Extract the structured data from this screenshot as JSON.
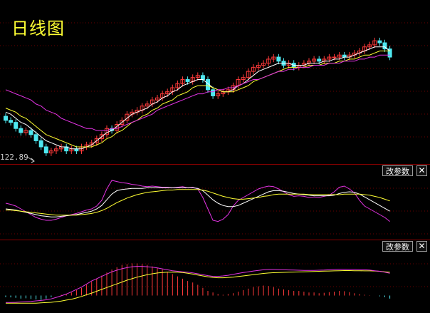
{
  "header": {
    "title": "日线图"
  },
  "price_panel": {
    "low_label": "122.89"
  },
  "panels": [
    {
      "param_label": "改参数",
      "close_label": "✕"
    },
    {
      "param_label": "改参数",
      "close_label": "✕"
    }
  ],
  "colors": {
    "background": "#000000",
    "up": "#ff3a3a",
    "down": "#4fe8f0",
    "ma_short": "#ffffff",
    "ma_mid": "#ffff33",
    "ma_long": "#e233e2",
    "divider": "#8a0000"
  },
  "icons": {
    "close": "close-icon",
    "low_marker": "arrow-icon"
  },
  "chart_data": [
    {
      "type": "candlestick",
      "title": "日线图",
      "annotations": [
        "122.89"
      ],
      "ylim": [
        120,
        185
      ],
      "x": [
        0,
        1,
        2,
        3,
        4,
        5,
        6,
        7,
        8,
        9,
        10,
        11,
        12,
        13,
        14,
        15,
        16,
        17,
        18,
        19,
        20,
        21,
        22,
        23,
        24,
        25,
        26,
        27,
        28,
        29,
        30,
        31,
        32,
        33,
        34,
        35,
        36,
        37,
        38,
        39,
        40,
        41,
        42,
        43,
        44,
        45,
        46,
        47,
        48,
        49,
        50,
        51,
        52,
        53,
        54,
        55,
        56,
        57,
        58,
        59,
        60,
        61,
        62,
        63,
        64,
        65,
        66,
        67,
        68,
        69,
        70,
        71,
        72,
        73,
        74,
        75,
        76
      ],
      "close": [
        140,
        139,
        136,
        134,
        135,
        133,
        130,
        127,
        124,
        125,
        126,
        127,
        125,
        126,
        125,
        127,
        128,
        129,
        131,
        133,
        136,
        135,
        138,
        140,
        143,
        144,
        145,
        147,
        148,
        150,
        151,
        153,
        154,
        156,
        158,
        160,
        159,
        161,
        162,
        160,
        155,
        152,
        153,
        154,
        155,
        157,
        160,
        161,
        164,
        166,
        167,
        168,
        170,
        171,
        169,
        167,
        168,
        166,
        167,
        168,
        169,
        170,
        169,
        170,
        171,
        171,
        172,
        171,
        172,
        173,
        174,
        176,
        177,
        179,
        178,
        175,
        171
      ],
      "series": [
        {
          "name": "",
          "values": [
            144,
            143,
            141,
            139,
            138,
            136,
            134,
            132,
            130,
            129,
            128,
            127,
            127,
            126,
            126,
            126,
            127,
            128,
            130,
            132,
            134,
            135,
            137,
            139,
            141,
            143,
            144,
            145,
            146,
            148,
            149,
            151,
            152,
            154,
            155,
            157,
            158,
            159,
            160,
            160,
            158,
            156,
            155,
            154,
            154,
            155,
            157,
            158,
            160,
            162,
            164,
            165,
            166,
            167,
            168,
            168,
            168,
            167,
            167,
            167,
            168,
            168,
            168,
            169,
            169,
            170,
            170,
            171,
            171,
            172,
            173,
            174,
            175,
            176,
            176,
            176,
            174
          ]
        },
        {
          "name": "",
          "values": [
            146,
            145,
            144,
            142,
            141,
            139,
            137,
            135,
            133,
            132,
            131,
            130,
            129,
            128,
            127,
            127,
            127,
            127,
            128,
            129,
            131,
            132,
            134,
            135,
            137,
            139,
            140,
            142,
            143,
            145,
            146,
            148,
            149,
            150,
            152,
            153,
            154,
            156,
            157,
            157,
            157,
            156,
            155,
            154,
            154,
            154,
            155,
            156,
            157,
            159,
            160,
            161,
            162,
            163,
            164,
            165,
            166,
            166,
            166,
            166,
            167,
            167,
            167,
            168,
            168,
            168,
            169,
            169,
            170,
            170,
            171,
            172,
            172,
            173,
            174,
            174,
            174
          ]
        },
        {
          "name": "",
          "values": [
            155,
            154,
            153,
            152,
            151,
            150,
            148,
            147,
            145,
            144,
            143,
            141,
            140,
            139,
            138,
            137,
            136,
            136,
            135,
            135,
            135,
            136,
            136,
            137,
            138,
            139,
            140,
            141,
            142,
            143,
            145,
            146,
            147,
            148,
            149,
            150,
            151,
            152,
            153,
            153,
            154,
            154,
            155,
            155,
            156,
            156,
            157,
            158,
            159,
            160,
            160,
            161,
            162,
            163,
            164,
            164,
            165,
            165,
            166,
            166,
            166,
            167,
            167,
            167,
            168,
            168,
            168,
            169,
            169,
            169,
            170,
            170,
            171,
            171,
            172,
            172,
            172
          ]
        }
      ]
    },
    {
      "type": "line",
      "ylim": [
        0,
        100
      ],
      "x": [
        0,
        1,
        2,
        3,
        4,
        5,
        6,
        7,
        8,
        9,
        10,
        11,
        12,
        13,
        14,
        15,
        16,
        17,
        18,
        19,
        20,
        21,
        22,
        23,
        24,
        25,
        26,
        27,
        28,
        29,
        30,
        31,
        32,
        33,
        34,
        35,
        36,
        37,
        38,
        39,
        40,
        41,
        42,
        43,
        44,
        45,
        46,
        47,
        48,
        49,
        50,
        51,
        52,
        53,
        54,
        55,
        56,
        57,
        58,
        59,
        60,
        61,
        62,
        63,
        64,
        65,
        66,
        67,
        68,
        69,
        70,
        71,
        72,
        73,
        74,
        75,
        76
      ],
      "series": [
        {
          "name": "",
          "values": [
            50,
            48,
            45,
            40,
            35,
            30,
            25,
            22,
            20,
            20,
            22,
            25,
            28,
            30,
            32,
            35,
            38,
            40,
            45,
            55,
            75,
            90,
            88,
            86,
            85,
            83,
            82,
            80,
            79,
            80,
            79,
            78,
            78,
            77,
            78,
            79,
            77,
            78,
            75,
            60,
            40,
            20,
            18,
            22,
            30,
            45,
            55,
            60,
            65,
            70,
            75,
            78,
            80,
            79,
            75,
            70,
            65,
            62,
            63,
            62,
            60,
            61,
            60,
            62,
            64,
            70,
            78,
            80,
            75,
            68,
            55,
            45,
            40,
            35,
            30,
            25,
            18
          ]
        },
        {
          "name": "",
          "values": [
            40,
            39,
            38,
            36,
            34,
            32,
            30,
            28,
            27,
            26,
            26,
            27,
            28,
            29,
            30,
            32,
            34,
            36,
            40,
            46,
            56,
            66,
            72,
            74,
            75,
            76,
            76,
            76,
            77,
            77,
            77,
            77,
            77,
            77,
            77,
            77,
            77,
            77,
            76,
            72,
            64,
            56,
            50,
            46,
            44,
            44,
            46,
            50,
            54,
            58,
            62,
            66,
            70,
            72,
            72,
            71,
            69,
            67,
            66,
            65,
            64,
            63,
            63,
            63,
            63,
            64,
            67,
            69,
            70,
            69,
            66,
            61,
            56,
            51,
            46,
            41,
            36
          ]
        },
        {
          "name": "",
          "values": [
            38,
            38,
            37,
            36,
            35,
            34,
            33,
            32,
            31,
            30,
            29,
            29,
            29,
            29,
            29,
            30,
            31,
            32,
            34,
            37,
            41,
            46,
            51,
            55,
            59,
            62,
            65,
            67,
            69,
            70,
            71,
            72,
            73,
            73,
            74,
            74,
            74,
            74,
            74,
            73,
            71,
            68,
            65,
            62,
            60,
            58,
            57,
            57,
            58,
            59,
            60,
            62,
            63,
            65,
            66,
            66,
            66,
            66,
            66,
            66,
            65,
            65,
            65,
            65,
            65,
            65,
            65,
            66,
            66,
            66,
            66,
            65,
            64,
            62,
            60,
            57,
            54
          ]
        }
      ]
    },
    {
      "type": "bar",
      "ylim": [
        -1,
        3
      ],
      "x": [
        0,
        1,
        2,
        3,
        4,
        5,
        6,
        7,
        8,
        9,
        10,
        11,
        12,
        13,
        14,
        15,
        16,
        17,
        18,
        19,
        20,
        21,
        22,
        23,
        24,
        25,
        26,
        27,
        28,
        29,
        30,
        31,
        32,
        33,
        34,
        35,
        36,
        37,
        38,
        39,
        40,
        41,
        42,
        43,
        44,
        45,
        46,
        47,
        48,
        49,
        50,
        51,
        52,
        53,
        54,
        55,
        56,
        57,
        58,
        59,
        60,
        61,
        62,
        63,
        64,
        65,
        66,
        67,
        68,
        69,
        70,
        71,
        72,
        73,
        74,
        75,
        76
      ],
      "values": [
        -0.1,
        -0.12,
        -0.15,
        -0.2,
        -0.18,
        -0.22,
        -0.25,
        -0.28,
        -0.2,
        -0.1,
        0,
        0.05,
        0.1,
        0.2,
        0.35,
        0.5,
        0.7,
        0.9,
        1.1,
        1.3,
        1.5,
        1.7,
        1.85,
        2.0,
        2.05,
        2.1,
        2.1,
        2.05,
        2.0,
        1.9,
        1.8,
        1.7,
        1.55,
        1.4,
        1.25,
        1.1,
        0.95,
        0.85,
        0.7,
        0.5,
        0.3,
        0.2,
        0.1,
        0.05,
        0.1,
        0.15,
        0.25,
        0.35,
        0.45,
        0.55,
        0.6,
        0.65,
        0.62,
        0.55,
        0.45,
        0.4,
        0.35,
        0.3,
        0.3,
        0.25,
        0.2,
        0.2,
        0.15,
        0.18,
        0.22,
        0.25,
        0.3,
        0.28,
        0.22,
        0.15,
        0.1,
        0.05,
        0.02,
        0,
        -0.05,
        -0.1,
        -0.2
      ],
      "series": [
        {
          "name": "",
          "values": [
            -0.5,
            -0.5,
            -0.5,
            -0.5,
            -0.5,
            -0.5,
            -0.5,
            -0.48,
            -0.46,
            -0.44,
            -0.4,
            -0.36,
            -0.3,
            -0.24,
            -0.16,
            -0.06,
            0.05,
            0.16,
            0.28,
            0.4,
            0.52,
            0.64,
            0.76,
            0.88,
            1.0,
            1.1,
            1.2,
            1.28,
            1.36,
            1.42,
            1.47,
            1.5,
            1.52,
            1.53,
            1.52,
            1.5,
            1.45,
            1.4,
            1.34,
            1.28,
            1.22,
            1.18,
            1.16,
            1.16,
            1.18,
            1.2,
            1.24,
            1.28,
            1.32,
            1.36,
            1.4,
            1.44,
            1.47,
            1.49,
            1.5,
            1.51,
            1.52,
            1.53,
            1.54,
            1.55,
            1.56,
            1.57,
            1.58,
            1.59,
            1.6,
            1.61,
            1.62,
            1.63,
            1.63,
            1.62,
            1.62,
            1.61,
            1.61,
            1.6,
            1.58,
            1.55,
            1.52
          ]
        },
        {
          "name": "",
          "values": [
            -0.45,
            -0.45,
            -0.44,
            -0.42,
            -0.4,
            -0.38,
            -0.35,
            -0.32,
            -0.28,
            -0.22,
            -0.12,
            -0.02,
            0.1,
            0.24,
            0.4,
            0.55,
            0.75,
            0.95,
            1.1,
            1.25,
            1.4,
            1.55,
            1.65,
            1.75,
            1.82,
            1.88,
            1.9,
            1.9,
            1.88,
            1.85,
            1.8,
            1.74,
            1.68,
            1.62,
            1.58,
            1.55,
            1.52,
            1.48,
            1.42,
            1.36,
            1.3,
            1.25,
            1.25,
            1.28,
            1.32,
            1.38,
            1.44,
            1.5,
            1.55,
            1.6,
            1.64,
            1.68,
            1.7,
            1.7,
            1.69,
            1.68,
            1.67,
            1.66,
            1.65,
            1.64,
            1.64,
            1.64,
            1.65,
            1.66,
            1.68,
            1.7,
            1.72,
            1.72,
            1.71,
            1.7,
            1.69,
            1.68,
            1.66,
            1.62,
            1.58,
            1.52,
            1.45
          ]
        }
      ]
    }
  ]
}
